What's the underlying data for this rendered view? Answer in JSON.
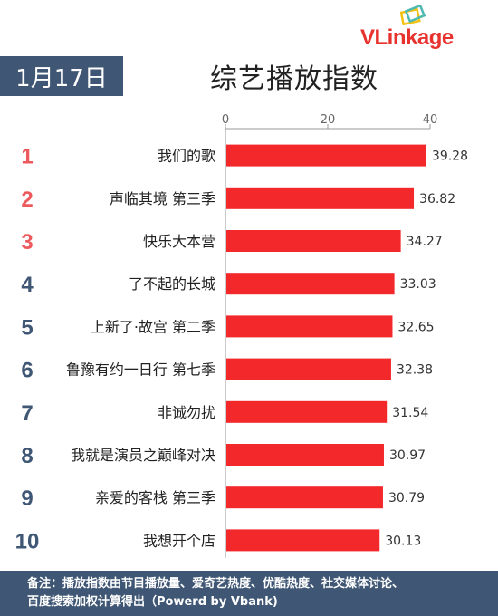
{
  "logo": {
    "brand_v": "VL",
    "brand_rest": "inkage"
  },
  "date": "1月17日",
  "title": "综艺播放指数",
  "chart_data": {
    "type": "bar",
    "orientation": "horizontal",
    "title": "综艺播放指数",
    "xlim": [
      0,
      40
    ],
    "x_ticks": [
      0,
      20,
      40
    ],
    "grid": false,
    "ranks": [
      "1",
      "2",
      "3",
      "4",
      "5",
      "6",
      "7",
      "8",
      "9",
      "10"
    ],
    "categories": [
      "我们的歌",
      "声临其境 第三季",
      "快乐大本营",
      "了不起的长城",
      "上新了·故宫 第二季",
      "鲁豫有约一日行 第七季",
      "非诚勿扰",
      "我就是演员之巅峰对决",
      "亲爱的客栈 第三季",
      "我想开个店"
    ],
    "values": [
      39.28,
      36.82,
      34.27,
      33.03,
      32.65,
      32.38,
      31.54,
      30.97,
      30.79,
      30.13
    ],
    "value_labels": [
      "39.28",
      "36.82",
      "34.27",
      "33.03",
      "32.65",
      "32.38",
      "31.54",
      "30.97",
      "30.79",
      "30.13"
    ],
    "colors": {
      "bar": "#f3282a",
      "top_rank": "#ec5a5d",
      "rank": "#3f5774",
      "axis": "#999999"
    }
  },
  "footer": {
    "line1": "备注：播放指数由节目播放量、爱奇艺热度、优酷热度、社交媒体讨论、",
    "line2": "百度搜索加权计算得出（Powerd by Vbank)"
  }
}
